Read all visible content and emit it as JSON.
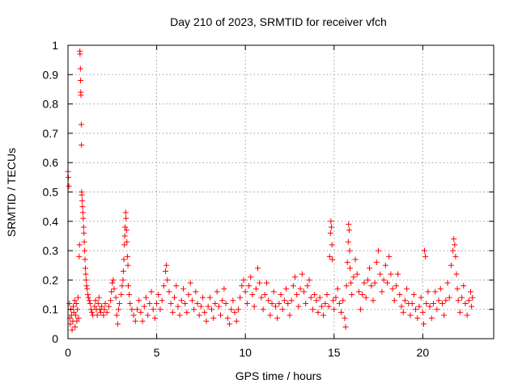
{
  "chart_data": {
    "type": "scatter",
    "title": "Day 210 of 2023, SRMTID for receiver vfch",
    "xlabel": "GPS time / hours",
    "ylabel": "SRMTID / TECUs",
    "xlim": [
      0,
      24
    ],
    "ylim": [
      0,
      1
    ],
    "x_ticks": [
      0,
      5,
      10,
      15,
      20
    ],
    "x_tick_labels": [
      "0",
      "5",
      "10",
      "15",
      "20"
    ],
    "y_ticks": [
      0,
      0.1,
      0.2,
      0.3,
      0.4,
      0.5,
      0.6,
      0.7,
      0.8,
      0.9,
      1
    ],
    "y_tick_labels": [
      "0",
      "0.1",
      "0.2",
      "0.3",
      "0.4",
      "0.5",
      "0.6",
      "0.7",
      "0.8",
      "0.9",
      "1"
    ],
    "grid": true,
    "marker": "+",
    "color": "#ff0000",
    "series": [
      {
        "name": "SRMTID",
        "points": [
          [
            0.0,
            0.57
          ],
          [
            0.02,
            0.55
          ],
          [
            0.05,
            0.52
          ],
          [
            0.08,
            0.12
          ],
          [
            0.1,
            0.07
          ],
          [
            0.13,
            0.05
          ],
          [
            0.16,
            0.1
          ],
          [
            0.2,
            0.08
          ],
          [
            0.23,
            0.03
          ],
          [
            0.27,
            0.06
          ],
          [
            0.3,
            0.11
          ],
          [
            0.33,
            0.09
          ],
          [
            0.37,
            0.13
          ],
          [
            0.4,
            0.04
          ],
          [
            0.43,
            0.08
          ],
          [
            0.47,
            0.12
          ],
          [
            0.5,
            0.06
          ],
          [
            0.53,
            0.1
          ],
          [
            0.57,
            0.14
          ],
          [
            0.6,
            0.07
          ],
          [
            0.63,
            0.28
          ],
          [
            0.65,
            0.32
          ],
          [
            0.67,
            0.98
          ],
          [
            0.68,
            0.97
          ],
          [
            0.7,
            0.92
          ],
          [
            0.71,
            0.88
          ],
          [
            0.72,
            0.84
          ],
          [
            0.73,
            0.83
          ],
          [
            0.75,
            0.73
          ],
          [
            0.76,
            0.66
          ],
          [
            0.77,
            0.5
          ],
          [
            0.78,
            0.49
          ],
          [
            0.8,
            0.47
          ],
          [
            0.82,
            0.45
          ],
          [
            0.84,
            0.43
          ],
          [
            0.86,
            0.41
          ],
          [
            0.88,
            0.38
          ],
          [
            0.9,
            0.36
          ],
          [
            0.92,
            0.33
          ],
          [
            0.94,
            0.3
          ],
          [
            0.96,
            0.27
          ],
          [
            0.98,
            0.24
          ],
          [
            1.0,
            0.22
          ],
          [
            1.02,
            0.2
          ],
          [
            1.05,
            0.18
          ],
          [
            1.08,
            0.17
          ],
          [
            1.12,
            0.15
          ],
          [
            1.15,
            0.14
          ],
          [
            1.2,
            0.13
          ],
          [
            1.25,
            0.12
          ],
          [
            1.3,
            0.1
          ],
          [
            1.35,
            0.09
          ],
          [
            1.4,
            0.08
          ],
          [
            1.5,
            0.11
          ],
          [
            1.55,
            0.13
          ],
          [
            1.6,
            0.1
          ],
          [
            1.65,
            0.08
          ],
          [
            1.7,
            0.12
          ],
          [
            1.75,
            0.14
          ],
          [
            1.8,
            0.1
          ],
          [
            1.85,
            0.09
          ],
          [
            1.9,
            0.11
          ],
          [
            2.0,
            0.08
          ],
          [
            2.05,
            0.1
          ],
          [
            2.1,
            0.12
          ],
          [
            2.2,
            0.09
          ],
          [
            2.3,
            0.11
          ],
          [
            2.4,
            0.13
          ],
          [
            2.45,
            0.16
          ],
          [
            2.5,
            0.19
          ],
          [
            2.55,
            0.2
          ],
          [
            2.6,
            0.17
          ],
          [
            2.7,
            0.14
          ],
          [
            2.75,
            0.08
          ],
          [
            2.8,
            0.05
          ],
          [
            2.85,
            0.1
          ],
          [
            2.9,
            0.12
          ],
          [
            3.0,
            0.15
          ],
          [
            3.05,
            0.18
          ],
          [
            3.1,
            0.2
          ],
          [
            3.12,
            0.23
          ],
          [
            3.15,
            0.27
          ],
          [
            3.18,
            0.32
          ],
          [
            3.2,
            0.35
          ],
          [
            3.22,
            0.38
          ],
          [
            3.25,
            0.43
          ],
          [
            3.27,
            0.41
          ],
          [
            3.3,
            0.37
          ],
          [
            3.32,
            0.33
          ],
          [
            3.35,
            0.28
          ],
          [
            3.38,
            0.25
          ],
          [
            3.4,
            0.18
          ],
          [
            3.45,
            0.15
          ],
          [
            3.5,
            0.12
          ],
          [
            3.6,
            0.1
          ],
          [
            3.7,
            0.08
          ],
          [
            3.8,
            0.06
          ],
          [
            3.9,
            0.1
          ],
          [
            4.0,
            0.13
          ],
          [
            4.1,
            0.09
          ],
          [
            4.2,
            0.06
          ],
          [
            4.3,
            0.11
          ],
          [
            4.4,
            0.14
          ],
          [
            4.5,
            0.08
          ],
          [
            4.6,
            0.12
          ],
          [
            4.7,
            0.16
          ],
          [
            4.8,
            0.1
          ],
          [
            4.9,
            0.07
          ],
          [
            5.0,
            0.12
          ],
          [
            5.1,
            0.15
          ],
          [
            5.2,
            0.1
          ],
          [
            5.3,
            0.13
          ],
          [
            5.4,
            0.18
          ],
          [
            5.5,
            0.23
          ],
          [
            5.55,
            0.25
          ],
          [
            5.6,
            0.2
          ],
          [
            5.7,
            0.16
          ],
          [
            5.8,
            0.12
          ],
          [
            5.9,
            0.09
          ],
          [
            6.0,
            0.14
          ],
          [
            6.1,
            0.18
          ],
          [
            6.2,
            0.11
          ],
          [
            6.3,
            0.08
          ],
          [
            6.4,
            0.13
          ],
          [
            6.5,
            0.17
          ],
          [
            6.6,
            0.12
          ],
          [
            6.7,
            0.09
          ],
          [
            6.8,
            0.15
          ],
          [
            6.9,
            0.19
          ],
          [
            7.0,
            0.13
          ],
          [
            7.1,
            0.1
          ],
          [
            7.2,
            0.16
          ],
          [
            7.3,
            0.12
          ],
          [
            7.4,
            0.08
          ],
          [
            7.5,
            0.11
          ],
          [
            7.6,
            0.14
          ],
          [
            7.7,
            0.09
          ],
          [
            7.8,
            0.06
          ],
          [
            7.9,
            0.11
          ],
          [
            8.0,
            0.14
          ],
          [
            8.1,
            0.1
          ],
          [
            8.2,
            0.07
          ],
          [
            8.3,
            0.12
          ],
          [
            8.4,
            0.16
          ],
          [
            8.5,
            0.11
          ],
          [
            8.6,
            0.08
          ],
          [
            8.7,
            0.13
          ],
          [
            8.8,
            0.17
          ],
          [
            8.9,
            0.12
          ],
          [
            9.0,
            0.07
          ],
          [
            9.1,
            0.05
          ],
          [
            9.2,
            0.1
          ],
          [
            9.3,
            0.13
          ],
          [
            9.4,
            0.09
          ],
          [
            9.5,
            0.06
          ],
          [
            9.6,
            0.1
          ],
          [
            9.7,
            0.14
          ],
          [
            9.8,
            0.18
          ],
          [
            9.9,
            0.2
          ],
          [
            10.0,
            0.16
          ],
          [
            10.1,
            0.12
          ],
          [
            10.2,
            0.18
          ],
          [
            10.3,
            0.21
          ],
          [
            10.4,
            0.15
          ],
          [
            10.5,
            0.11
          ],
          [
            10.6,
            0.17
          ],
          [
            10.7,
            0.24
          ],
          [
            10.8,
            0.19
          ],
          [
            10.9,
            0.14
          ],
          [
            11.0,
            0.1
          ],
          [
            11.1,
            0.15
          ],
          [
            11.2,
            0.19
          ],
          [
            11.3,
            0.13
          ],
          [
            11.4,
            0.08
          ],
          [
            11.5,
            0.12
          ],
          [
            11.6,
            0.16
          ],
          [
            11.7,
            0.11
          ],
          [
            11.8,
            0.07
          ],
          [
            11.9,
            0.12
          ],
          [
            12.0,
            0.15
          ],
          [
            12.1,
            0.1
          ],
          [
            12.2,
            0.13
          ],
          [
            12.3,
            0.17
          ],
          [
            12.4,
            0.12
          ],
          [
            12.5,
            0.08
          ],
          [
            12.6,
            0.13
          ],
          [
            12.7,
            0.18
          ],
          [
            12.8,
            0.21
          ],
          [
            12.9,
            0.15
          ],
          [
            13.0,
            0.11
          ],
          [
            13.1,
            0.17
          ],
          [
            13.2,
            0.22
          ],
          [
            13.3,
            0.16
          ],
          [
            13.4,
            0.12
          ],
          [
            13.5,
            0.18
          ],
          [
            13.6,
            0.2
          ],
          [
            13.7,
            0.14
          ],
          [
            13.8,
            0.1
          ],
          [
            13.9,
            0.15
          ],
          [
            14.0,
            0.13
          ],
          [
            14.1,
            0.09
          ],
          [
            14.2,
            0.14
          ],
          [
            14.3,
            0.11
          ],
          [
            14.4,
            0.08
          ],
          [
            14.5,
            0.12
          ],
          [
            14.6,
            0.15
          ],
          [
            14.7,
            0.11
          ],
          [
            14.75,
            0.28
          ],
          [
            14.8,
            0.36
          ],
          [
            14.82,
            0.4
          ],
          [
            14.85,
            0.38
          ],
          [
            14.88,
            0.32
          ],
          [
            14.9,
            0.27
          ],
          [
            14.95,
            0.13
          ],
          [
            15.0,
            0.1
          ],
          [
            15.1,
            0.14
          ],
          [
            15.2,
            0.17
          ],
          [
            15.3,
            0.12
          ],
          [
            15.4,
            0.09
          ],
          [
            15.5,
            0.13
          ],
          [
            15.6,
            0.07
          ],
          [
            15.65,
            0.04
          ],
          [
            15.7,
            0.18
          ],
          [
            15.75,
            0.26
          ],
          [
            15.8,
            0.33
          ],
          [
            15.82,
            0.39
          ],
          [
            15.85,
            0.37
          ],
          [
            15.88,
            0.3
          ],
          [
            15.9,
            0.24
          ],
          [
            15.95,
            0.19
          ],
          [
            16.0,
            0.15
          ],
          [
            16.1,
            0.21
          ],
          [
            16.2,
            0.27
          ],
          [
            16.3,
            0.22
          ],
          [
            16.4,
            0.16
          ],
          [
            16.5,
            0.1
          ],
          [
            16.6,
            0.15
          ],
          [
            16.7,
            0.19
          ],
          [
            16.8,
            0.14
          ],
          [
            16.9,
            0.2
          ],
          [
            17.0,
            0.24
          ],
          [
            17.1,
            0.18
          ],
          [
            17.2,
            0.13
          ],
          [
            17.3,
            0.19
          ],
          [
            17.4,
            0.26
          ],
          [
            17.5,
            0.3
          ],
          [
            17.6,
            0.22
          ],
          [
            17.7,
            0.16
          ],
          [
            17.8,
            0.2
          ],
          [
            17.9,
            0.25
          ],
          [
            18.0,
            0.19
          ],
          [
            18.1,
            0.28
          ],
          [
            18.2,
            0.22
          ],
          [
            18.3,
            0.17
          ],
          [
            18.4,
            0.13
          ],
          [
            18.5,
            0.18
          ],
          [
            18.6,
            0.22
          ],
          [
            18.7,
            0.15
          ],
          [
            18.8,
            0.11
          ],
          [
            18.9,
            0.09
          ],
          [
            19.0,
            0.13
          ],
          [
            19.1,
            0.17
          ],
          [
            19.2,
            0.12
          ],
          [
            19.3,
            0.08
          ],
          [
            19.4,
            0.12
          ],
          [
            19.5,
            0.15
          ],
          [
            19.6,
            0.1
          ],
          [
            19.7,
            0.07
          ],
          [
            19.8,
            0.11
          ],
          [
            19.9,
            0.14
          ],
          [
            20.0,
            0.09
          ],
          [
            20.05,
            0.05
          ],
          [
            20.1,
            0.3
          ],
          [
            20.15,
            0.28
          ],
          [
            20.2,
            0.12
          ],
          [
            20.3,
            0.16
          ],
          [
            20.4,
            0.11
          ],
          [
            20.5,
            0.07
          ],
          [
            20.6,
            0.12
          ],
          [
            20.7,
            0.16
          ],
          [
            20.8,
            0.1
          ],
          [
            20.9,
            0.13
          ],
          [
            21.0,
            0.17
          ],
          [
            21.1,
            0.12
          ],
          [
            21.2,
            0.08
          ],
          [
            21.3,
            0.13
          ],
          [
            21.4,
            0.19
          ],
          [
            21.5,
            0.14
          ],
          [
            21.6,
            0.25
          ],
          [
            21.7,
            0.3
          ],
          [
            21.75,
            0.34
          ],
          [
            21.8,
            0.32
          ],
          [
            21.85,
            0.28
          ],
          [
            21.9,
            0.22
          ],
          [
            21.95,
            0.17
          ],
          [
            22.0,
            0.13
          ],
          [
            22.1,
            0.09
          ],
          [
            22.2,
            0.14
          ],
          [
            22.3,
            0.18
          ],
          [
            22.4,
            0.12
          ],
          [
            22.5,
            0.08
          ],
          [
            22.6,
            0.13
          ],
          [
            22.7,
            0.16
          ],
          [
            22.75,
            0.11
          ],
          [
            22.8,
            0.14
          ]
        ]
      }
    ]
  }
}
